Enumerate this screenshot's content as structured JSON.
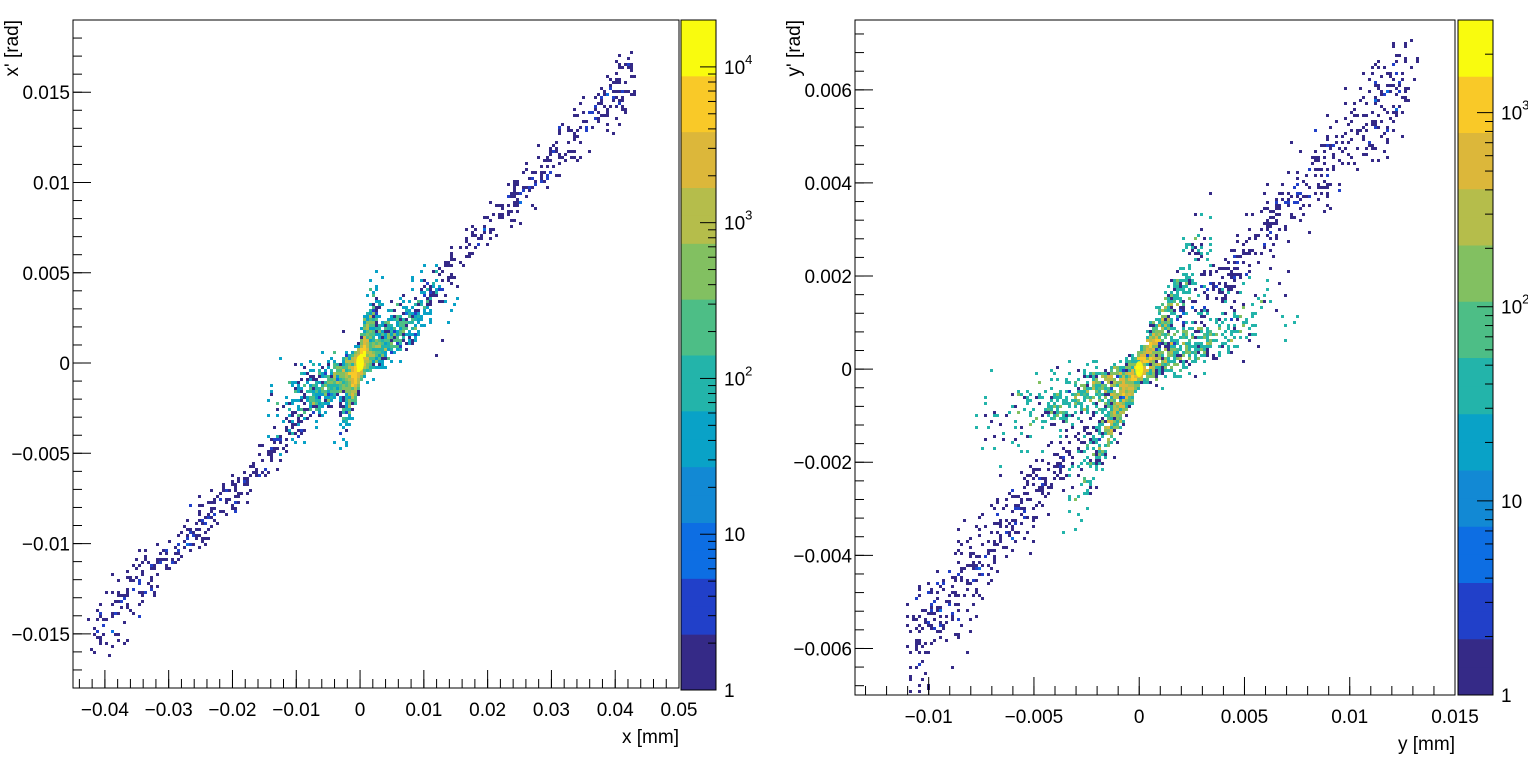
{
  "chart_data": [
    {
      "type": "heatmap",
      "title": "",
      "xlabel": "x [mm]",
      "ylabel": "x' [rad]",
      "xlim": [
        -0.045,
        0.05
      ],
      "ylim": [
        -0.018,
        0.019
      ],
      "x_ticks": [
        -0.04,
        -0.03,
        -0.02,
        -0.01,
        0,
        0.01,
        0.02,
        0.03,
        0.04,
        0.05
      ],
      "x_tick_labels": [
        "−0.04",
        "−0.03",
        "−0.02",
        "−0.01",
        "0",
        "0.01",
        "0.02",
        "0.03",
        "0.04",
        "0.05"
      ],
      "y_ticks": [
        -0.015,
        -0.01,
        -0.005,
        0,
        0.005,
        0.01,
        0.015
      ],
      "y_tick_labels": [
        "−0.015",
        "−0.01",
        "−0.005",
        "0",
        "0.005",
        "0.01",
        "0.015"
      ],
      "z_scale": "log",
      "zlim": [
        1,
        20000
      ],
      "z_ticks": [
        1,
        10,
        100,
        1000,
        10000
      ],
      "z_tick_labels": [
        {
          "base": "1",
          "exp": ""
        },
        {
          "base": "10",
          "exp": ""
        },
        {
          "base": "10",
          "exp": "2"
        },
        {
          "base": "10",
          "exp": "3"
        },
        {
          "base": "10",
          "exp": "4"
        }
      ],
      "distribution": {
        "shape": "two diagonal lobes crossing at origin",
        "upper_lobe": {
          "from": [
            -0.015,
            -0.0035
          ],
          "to": [
            0.003,
            0.0035
          ]
        },
        "lower_lobe": {
          "from": [
            -0.003,
            -0.003
          ],
          "to": [
            0.015,
            0.0045
          ]
        },
        "tails": {
          "from": [
            -0.042,
            -0.015
          ],
          "to": [
            0.043,
            0.016
          ]
        },
        "peak": [
          0,
          0
        ],
        "peak_counts": 20000
      }
    },
    {
      "type": "heatmap",
      "title": "",
      "xlabel": "y [mm]",
      "ylabel": "y' [rad]",
      "xlim": [
        -0.0135,
        0.015
      ],
      "ylim": [
        -0.007,
        0.0075
      ],
      "x_ticks": [
        -0.01,
        -0.005,
        0,
        0.005,
        0.01,
        0.015
      ],
      "x_tick_labels": [
        "−0.01",
        "−0.005",
        "0",
        "0.005",
        "0.01",
        "0.015"
      ],
      "y_ticks": [
        -0.006,
        -0.004,
        -0.002,
        0,
        0.002,
        0.004,
        0.006
      ],
      "y_tick_labels": [
        "−0.006",
        "−0.004",
        "−0.002",
        "0",
        "0.002",
        "0.004",
        "0.006"
      ],
      "z_scale": "log",
      "zlim": [
        1,
        3000
      ],
      "z_ticks": [
        1,
        10,
        100,
        1000
      ],
      "z_tick_labels": [
        {
          "base": "1",
          "exp": ""
        },
        {
          "base": "10",
          "exp": ""
        },
        {
          "base": "10",
          "exp": "2"
        },
        {
          "base": "10",
          "exp": "3"
        }
      ],
      "distribution": {
        "shape": "bow-tie crossing at origin",
        "upper_lobe": {
          "from": [
            -0.008,
            -0.0015
          ],
          "to": [
            0.0035,
            0.003
          ]
        },
        "lower_lobe": {
          "from": [
            -0.0035,
            -0.003
          ],
          "to": [
            0.0075,
            0.0015
          ]
        },
        "tails": {
          "from": [
            -0.011,
            -0.006
          ],
          "to": [
            0.013,
            0.0064
          ]
        },
        "peak": [
          0,
          0
        ],
        "peak_counts": 3000
      }
    }
  ],
  "colormap": [
    "#352a87",
    "#2140c9",
    "#0d6ee3",
    "#1289d4",
    "#09a2c7",
    "#23b4aa",
    "#4dbe86",
    "#82c061",
    "#b5bd4b",
    "#dcb73a",
    "#f9c928",
    "#f9fb0e"
  ]
}
